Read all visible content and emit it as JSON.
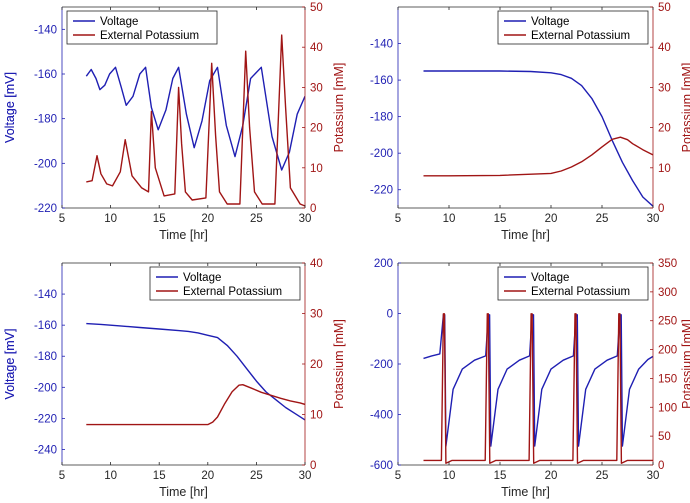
{
  "colors": {
    "voltage": "#1f1fb3",
    "potassium": "#a01515",
    "axis": "#262626"
  },
  "chart_data": [
    {
      "type": "line",
      "title": "",
      "xlabel": "Time [hr]",
      "ylabel_left": "Voltage [mV]",
      "ylabel_right": "Potassium [mM]",
      "xlim": [
        5,
        30
      ],
      "xticks": [
        5,
        10,
        15,
        20,
        25,
        30
      ],
      "ylim_left": [
        -220,
        -130
      ],
      "yticks_left": [
        -220,
        -200,
        -180,
        -160,
        -140
      ],
      "ylim_right": [
        0,
        50
      ],
      "yticks_right": [
        0,
        10,
        20,
        30,
        40,
        50
      ],
      "legend": [
        "Voltage",
        "External Potassium"
      ],
      "legend_position": "top-left",
      "series": [
        {
          "name": "Voltage",
          "axis": "left",
          "x": [
            7.5,
            8.0,
            8.5,
            8.9,
            9.4,
            9.9,
            10.5,
            11.1,
            11.6,
            12.3,
            13.0,
            13.6,
            14.2,
            14.9,
            15.7,
            16.4,
            17.0,
            17.8,
            18.6,
            19.4,
            20.2,
            21.0,
            21.9,
            22.8,
            23.6,
            24.4,
            25.5,
            26.6,
            27.6,
            28.4,
            29.2,
            30.0
          ],
          "values": [
            -161,
            -158,
            -162,
            -167,
            -165,
            -160,
            -157,
            -166,
            -174,
            -170,
            -160,
            -157,
            -175,
            -185,
            -176,
            -162,
            -157,
            -178,
            -193,
            -181,
            -163,
            -157,
            -183,
            -197,
            -183,
            -162,
            -157,
            -188,
            -203,
            -195,
            -178,
            -170
          ]
        },
        {
          "name": "External Potassium",
          "axis": "right",
          "x": [
            7.5,
            8.1,
            8.6,
            9.0,
            9.6,
            10.2,
            11.0,
            11.5,
            12.2,
            13.2,
            13.9,
            14.2,
            14.6,
            15.5,
            16.6,
            17.0,
            17.3,
            17.7,
            18.4,
            19.8,
            20.4,
            20.8,
            21.2,
            22.0,
            23.3,
            23.9,
            24.3,
            24.8,
            25.6,
            26.9,
            27.6,
            28.0,
            28.5,
            29.5,
            30.0
          ],
          "values": [
            6.5,
            6.8,
            13.0,
            8.5,
            6.0,
            5.5,
            9.0,
            17.0,
            8.0,
            5.0,
            4.0,
            24.0,
            10.0,
            3.0,
            3.5,
            30.0,
            16.0,
            4.0,
            2.0,
            2.5,
            36.0,
            18.0,
            4.0,
            1.0,
            1.0,
            39.0,
            20.0,
            4.0,
            1.0,
            1.0,
            43.0,
            25.0,
            5.0,
            1.0,
            0.5
          ]
        }
      ]
    },
    {
      "type": "line",
      "title": "",
      "xlabel": "Time [hr]",
      "ylabel_left": "Voltage [mV]",
      "ylabel_right": "Potassium [mM]",
      "xlim": [
        5,
        30
      ],
      "xticks": [
        5,
        10,
        15,
        20,
        25,
        30
      ],
      "ylim_left": [
        -230,
        -120
      ],
      "yticks_left": [
        -220,
        -200,
        -180,
        -160,
        -140
      ],
      "ylim_right": [
        0,
        50
      ],
      "yticks_right": [
        0,
        10,
        20,
        30,
        40,
        50
      ],
      "legend": [
        "Voltage",
        "External Potassium"
      ],
      "legend_position": "top-right",
      "series": [
        {
          "name": "Voltage",
          "axis": "left",
          "x": [
            7.5,
            10,
            15,
            18,
            20,
            21,
            22,
            23,
            24,
            25,
            26,
            27,
            28,
            29,
            30
          ],
          "values": [
            -155,
            -155,
            -155,
            -155.3,
            -156,
            -157,
            -159,
            -163,
            -170,
            -180,
            -193,
            -205,
            -215,
            -224,
            -229
          ]
        },
        {
          "name": "External Potassium",
          "axis": "right",
          "x": [
            7.5,
            10,
            15,
            20,
            21,
            22,
            23,
            24,
            25,
            26,
            26.8,
            27.5,
            28,
            29,
            30
          ],
          "values": [
            8,
            8,
            8.1,
            8.6,
            9.2,
            10.2,
            11.5,
            13.2,
            15.2,
            17.1,
            17.6,
            17.0,
            16.0,
            14.5,
            13.2
          ]
        }
      ]
    },
    {
      "type": "line",
      "title": "",
      "xlabel": "Time [hr]",
      "ylabel_left": "Voltage [mV]",
      "ylabel_right": "Potassium [mM]",
      "xlim": [
        5,
        30
      ],
      "xticks": [
        5,
        10,
        15,
        20,
        25,
        30
      ],
      "ylim_left": [
        -250,
        -120
      ],
      "yticks_left": [
        -240,
        -220,
        -200,
        -180,
        -160,
        -140
      ],
      "ylim_right": [
        0,
        40
      ],
      "yticks_right": [
        0,
        10,
        20,
        30,
        40
      ],
      "legend": [
        "Voltage",
        "External Potassium"
      ],
      "legend_position": "top-right",
      "series": [
        {
          "name": "Voltage",
          "axis": "left",
          "x": [
            7.5,
            9,
            11,
            13,
            15,
            17,
            18,
            19,
            20,
            21,
            22,
            23,
            24,
            25,
            26,
            27,
            28,
            29,
            30
          ],
          "values": [
            -159,
            -159.5,
            -160.5,
            -161.5,
            -162.5,
            -163.5,
            -164,
            -165,
            -166.5,
            -168,
            -173,
            -180,
            -188,
            -196,
            -203,
            -208,
            -213,
            -217,
            -221
          ]
        },
        {
          "name": "External Potassium",
          "axis": "right",
          "x": [
            7.5,
            20,
            20.5,
            21,
            21.7,
            22.5,
            23.2,
            23.6,
            24.5,
            25.5,
            26.5,
            27.5,
            28.5,
            29.5,
            30
          ],
          "values": [
            8,
            8,
            8.5,
            9.5,
            12,
            14.5,
            15.8,
            15.9,
            15.2,
            14.4,
            13.8,
            13.2,
            12.7,
            12.3,
            12
          ]
        }
      ]
    },
    {
      "type": "line",
      "title": "",
      "xlabel": "Time [hr]",
      "ylabel_left": "Voltage [mV]",
      "ylabel_right": "Potassium [mM]",
      "xlim": [
        5,
        30
      ],
      "xticks": [
        5,
        10,
        15,
        20,
        25,
        30
      ],
      "ylim_left": [
        -600,
        200
      ],
      "yticks_left": [
        -600,
        -400,
        -200,
        0,
        200
      ],
      "ylim_right": [
        0,
        350
      ],
      "yticks_right": [
        0,
        50,
        100,
        150,
        200,
        250,
        300,
        350
      ],
      "legend": [
        "Voltage",
        "External Potassium"
      ],
      "legend_position": "top-right",
      "series": [
        {
          "name": "Voltage",
          "axis": "left",
          "x": [
            7.5,
            8.3,
            9.1,
            9.45,
            9.58,
            9.7,
            10.4,
            11.3,
            12.5,
            13.6,
            13.85,
            13.98,
            14.1,
            14.8,
            15.7,
            16.9,
            17.9,
            18.15,
            18.28,
            18.4,
            19.1,
            20.0,
            21.2,
            22.2,
            22.45,
            22.58,
            22.7,
            23.4,
            24.3,
            25.5,
            26.5,
            26.75,
            26.88,
            27.0,
            27.7,
            28.6,
            29.5,
            30.0
          ],
          "values": [
            -178,
            -168,
            -160,
            -5,
            -5,
            -525,
            -300,
            -220,
            -185,
            -168,
            -5,
            -5,
            -525,
            -300,
            -220,
            -185,
            -168,
            -5,
            -5,
            -525,
            -300,
            -220,
            -185,
            -168,
            -5,
            -5,
            -525,
            -300,
            -220,
            -185,
            -168,
            -5,
            -5,
            -525,
            -300,
            -220,
            -182,
            -170
          ]
        },
        {
          "name": "External Potassium",
          "axis": "right",
          "x": [
            7.5,
            9.25,
            9.45,
            9.55,
            9.7,
            10.3,
            13.55,
            13.75,
            13.85,
            14.0,
            14.6,
            17.85,
            18.05,
            18.15,
            18.3,
            18.9,
            22.15,
            22.35,
            22.45,
            22.6,
            23.2,
            26.45,
            26.65,
            26.75,
            26.9,
            27.5,
            30.0
          ],
          "values": [
            8,
            8,
            262,
            262,
            3,
            8,
            8,
            262,
            262,
            3,
            8,
            8,
            262,
            262,
            3,
            8,
            8,
            262,
            262,
            3,
            8,
            8,
            262,
            262,
            3,
            8,
            8
          ]
        }
      ]
    }
  ]
}
